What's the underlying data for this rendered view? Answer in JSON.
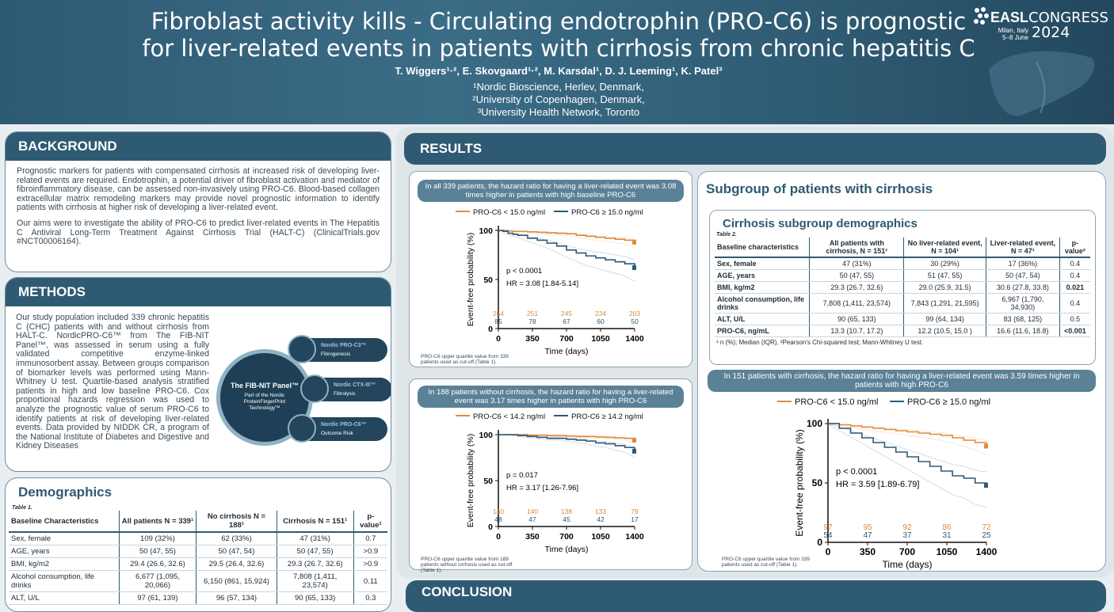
{
  "header": {
    "title_line1": "Fibroblast activity kills - Circulating endotrophin (PRO-C6) is prognostic",
    "title_line2": "for liver-related events in patients with cirrhosis from chronic hepatitis C",
    "authors": "T. Wiggers¹·², E. Skovgaard¹·², M. Karsdal¹, D. J. Leeming¹, K. Patel³",
    "aff1": "¹Nordic Bioscience, Herlev, Denmark,",
    "aff2": "²University of Copenhagen, Denmark,",
    "aff3": "³University Health Network, Toronto",
    "logo_easl": "EASL",
    "logo_congress": "CONGRESS",
    "logo_place1": "Milan, Italy",
    "logo_place2": "5–8 June",
    "logo_year": "2024",
    "brand_color": "#2f5a73"
  },
  "background": {
    "heading": "BACKGROUND",
    "p1": "Prognostic markers for patients with compensated cirrhosis at increased risk of developing liver-related events are required. Endotrophin, a potential driver of fibroblast activation and mediator of fibroinflammatory disease, can be assessed non-invasively using PRO-C6. Blood-based collagen extracellular matrix remodeling markers may provide novel prognostic information to identify patients with cirrhosis at higher risk of developing a liver-related event.",
    "p2": "Our aims were to investigate the ability of PRO-C6 to predict liver-related events in The Hepatitis C Antiviral Long-Term Treatment Against Cirrhosis Trial (HALT-C) (ClinicalTrials.gov #NCT00006164)."
  },
  "methods": {
    "heading": "METHODS",
    "text": "Our study population included 339 chronic hepatitis C (CHC) patients with and without cirrhosis from HALT-C. NordicPRO-C6™ from The FIB-NIT Panel™, was assessed in serum using a fully validated competitive enzyme-linked immunosorbent assay. Between groups comparison of biomarker levels was performed using Mann-Whitney U test. Quartile-based analysis stratified patients in high and low baseline PRO-C6. Cox proportional hazards regression was used to analyze the prognostic value of serum PRO-C6 to identify patients at risk of developing liver-related events. Data provided by NIDDK CR, a program of the National Institute of Diabetes and Digestive and Kidney Diseases",
    "panel_title": "The FIB-NIT Panel™",
    "panel_sub": "Part of the Nordic ProteinFingerPrint Technology™",
    "markers": [
      {
        "name": "Nordic PRO-C3™",
        "desc": "Fibrogenesis"
      },
      {
        "name": "Nordic CTX-III™",
        "desc": "Fibrolysis"
      },
      {
        "name": "Nordic PRO-C6™",
        "desc": "Outcome Risk"
      }
    ]
  },
  "demographics": {
    "heading": "Demographics",
    "table_label": "Table 1.",
    "cols": [
      "Baseline Characteristics",
      "All patients N = 339¹",
      "No cirrhosis N = 188¹",
      "Cirrhosis N = 151¹",
      "p-value²"
    ],
    "rows": [
      [
        "Sex, female",
        "109 (32%)",
        "62 (33%)",
        "47 (31%)",
        "0.7"
      ],
      [
        "AGE, years",
        "50 (47, 55)",
        "50 (47, 54)",
        "50 (47, 55)",
        ">0.9"
      ],
      [
        "BMI, kg/m2",
        "29.4 (26.6, 32.6)",
        "29.5 (26.4, 32.6)",
        "29.3 (26.7, 32.6)",
        ">0.9"
      ],
      [
        "Alcohol consumption, life drinks",
        "6,677 (1,095, 20,066)",
        "6,150 (861, 15,924)",
        "7,808 (1,411, 23,574)",
        "0.11"
      ],
      [
        "ALT, U/L",
        "97 (61, 139)",
        "96 (57, 134)",
        "90 (65, 133)",
        "0.3"
      ]
    ]
  },
  "results": {
    "heading": "RESULTS",
    "km1": {
      "bar": "In all 339 patients, the hazard ratio for having a liver-related event was 3.08 times higher in patients with high baseline PRO-C6",
      "bar_bold": "In all 339 patients",
      "legend_low": "PRO-C6 < 15.0 ng/ml",
      "legend_high": "PRO-C6 ≥ 15.0 ng/ml",
      "p": "p < 0.0001",
      "hr": "HR = 3.08 [1.84-5.14]",
      "risk_low": [
        "254",
        "251",
        "245",
        "234",
        "203"
      ],
      "risk_high": [
        "85",
        "78",
        "67",
        "60",
        "50"
      ],
      "note": "PRO-C6 upper quartile value from 339 patients used as cut-off (Table 1)."
    },
    "km2": {
      "bar": "In 188 patients without cirrhosis, the hazard ratio for having a liver-related event was 3.17 times higher in patients with high PRO-C6",
      "legend_low": "PRO-C6 < 14.2 ng/ml",
      "legend_high": "PRO-C6 ≥ 14.2 ng/ml",
      "p": "p = 0.017",
      "hr": "HR = 3.17 [1.26-7.96]",
      "risk_low": [
        "140",
        "140",
        "138",
        "133",
        "79"
      ],
      "risk_high": [
        "48",
        "47",
        "45",
        "42",
        "17"
      ],
      "note": "PRO-C6 upper quartile value from 188 patients without cirrhosis used as cut-off (Table 1)."
    },
    "km3": {
      "bar": "In 151 patients with cirrhosis, the hazard ratio for having a liver-related event was 3.59 times higher in patients with high PRO-C6",
      "legend_low": "PRO-C6 < 15.0 ng/ml",
      "legend_high": "PRO-C6 ≥ 15.0 ng/ml",
      "p": "p < 0.0001",
      "hr": "HR = 3.59 [1.89-6.79]",
      "risk_low": [
        "97",
        "95",
        "92",
        "86",
        "72"
      ],
      "risk_high": [
        "54",
        "47",
        "37",
        "31",
        "25"
      ],
      "note": "PRO-C6 upper quartile value from 339 patients used as cut-off (Table 1)."
    },
    "xlabel": "Time (days)",
    "ylabel": "Event-free probability (%)",
    "subgroup_heading": "Subgroup of patients with cirrhosis",
    "cirr_heading": "Cirrhosis subgroup demographics",
    "table2_label": "Table 2.",
    "t2_cols": [
      "Baseline characteristics",
      "All patients with cirrhosis, N = 151¹",
      "No liver-related event, N = 104¹",
      "Liver-related event, N = 47¹",
      "p-value²"
    ],
    "t2_rows": [
      [
        "Sex, female",
        "47 (31%)",
        "30 (29%)",
        "17 (36%)",
        "0.4"
      ],
      [
        "AGE, years",
        "50 (47, 55)",
        "51 (47, 55)",
        "50 (47, 54)",
        "0.4"
      ],
      [
        "BMI, kg/m2",
        "29.3 (26.7, 32.6)",
        "29.0 (25.9, 31.5)",
        "30.6 (27.8, 33.8)",
        "0.021"
      ],
      [
        "Alcohol consumption, life drinks",
        "7,808 (1,411, 23,574)",
        "7,843 (1,291, 21,595)",
        "6,967 (1,790, 34,930)",
        "0.4"
      ],
      [
        "ALT, U/L",
        "90 (65, 133)",
        "99 (64, 134)",
        "83 (68, 125)",
        "0.5"
      ],
      [
        "PRO-C6, ng/mL",
        "13.3 (10.7, 17.2)",
        "12.2 (10.5, 15.0 )",
        "16.6 (11.6, 18.8)",
        "<0.001"
      ]
    ],
    "t2_note": "¹ n (%); Median (IQR), ²Pearson's Chi-squared test; Mann-Whitney U test.",
    "conclusion": "CONCLUSION"
  },
  "chart_data": [
    {
      "type": "line",
      "title": "In all 339 patients",
      "x": [
        0,
        50,
        100,
        150,
        200,
        300,
        400,
        500,
        600,
        700,
        800,
        900,
        1000,
        1100,
        1200,
        1300,
        1400
      ],
      "xticks": [
        0,
        350,
        700,
        1050,
        1400
      ],
      "yticks": [
        0,
        50,
        100
      ],
      "ylim": [
        0,
        100
      ],
      "xlim": [
        0,
        1400
      ],
      "series": [
        {
          "name": "PRO-C6 < 15.0 ng/ml",
          "color": "#e08a3c",
          "values": [
            100,
            100,
            99.5,
            99,
            99,
            98.5,
            98,
            97.5,
            97,
            96.5,
            95,
            94,
            93,
            92,
            91,
            90,
            88
          ]
        },
        {
          "name": "PRO-C6 ≥ 15.0 ng/ml",
          "color": "#2a5a7a",
          "values": [
            100,
            99,
            97,
            96,
            95,
            92,
            90,
            87,
            84,
            80,
            77,
            74,
            72,
            70,
            68,
            66,
            62
          ]
        }
      ]
    },
    {
      "type": "line",
      "title": "In 188 patients without cirrhosis",
      "x": [
        0,
        100,
        200,
        300,
        400,
        500,
        600,
        700,
        800,
        900,
        1000,
        1100,
        1200,
        1300,
        1400
      ],
      "xticks": [
        0,
        350,
        700,
        1050,
        1400
      ],
      "yticks": [
        0,
        50,
        100
      ],
      "ylim": [
        0,
        100
      ],
      "xlim": [
        0,
        1400
      ],
      "series": [
        {
          "name": "PRO-C6 < 14.2 ng/ml",
          "color": "#e08a3c",
          "values": [
            100,
            100,
            100,
            99.5,
            99.5,
            99,
            99,
            98.5,
            98,
            98,
            97.5,
            97,
            96.5,
            96,
            94
          ]
        },
        {
          "name": "PRO-C6 ≥ 14.2 ng/ml",
          "color": "#2a5a7a",
          "values": [
            100,
            100,
            99,
            98,
            97,
            96,
            96,
            95,
            94,
            93,
            91,
            90,
            88,
            86,
            82
          ]
        }
      ]
    },
    {
      "type": "line",
      "title": "In 151 patients with cirrhosis",
      "x": [
        0,
        100,
        200,
        300,
        400,
        500,
        600,
        700,
        800,
        900,
        1000,
        1100,
        1200,
        1300,
        1400
      ],
      "xticks": [
        0,
        350,
        700,
        1050,
        1400
      ],
      "yticks": [
        0,
        50,
        100
      ],
      "ylim": [
        0,
        100
      ],
      "xlim": [
        0,
        1400
      ],
      "series": [
        {
          "name": "PRO-C6 < 15.0 ng/ml",
          "color": "#e08a3c",
          "values": [
            100,
            99,
            98,
            97,
            96,
            95,
            94,
            93,
            92,
            91,
            90,
            88,
            86,
            84,
            81
          ]
        },
        {
          "name": "PRO-C6 ≥ 15.0 ng/ml",
          "color": "#2a5a7a",
          "values": [
            100,
            96,
            92,
            88,
            84,
            80,
            76,
            72,
            68,
            64,
            60,
            56,
            54,
            50,
            48
          ]
        }
      ]
    }
  ]
}
